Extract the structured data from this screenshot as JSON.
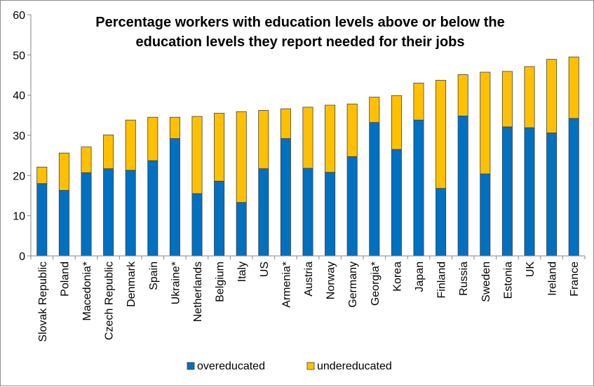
{
  "chart_data": {
    "type": "bar",
    "stacked": true,
    "title": [
      "Percentage workers with education levels above or below the",
      "education levels they report needed for their jobs"
    ],
    "xlabel": "",
    "ylabel": "",
    "ylim": [
      0,
      60
    ],
    "yticks": [
      "0",
      "10",
      "20",
      "30",
      "40",
      "50",
      "60"
    ],
    "grid": false,
    "legend_position": "bottom",
    "categories": [
      "Slovak Republic",
      "Poland",
      "Macedonia*",
      "Czech Republic",
      "Denmark",
      "Spain",
      "Ukraine*",
      "Netherlands",
      "Belgium",
      "Italy",
      "US",
      "Armenia*",
      "Austria",
      "Norway",
      "Germany",
      "Georgia*",
      "Korea",
      "Japan",
      "Finland",
      "Russia",
      "Sweden",
      "Estonia",
      "UK",
      "Ireland",
      "France"
    ],
    "series": [
      {
        "name": "overeducated",
        "color": "#0070c0",
        "values": [
          18,
          16.3,
          20.7,
          21.7,
          21.3,
          23.7,
          29.2,
          15.5,
          18.6,
          13.3,
          21.7,
          29.2,
          21.8,
          20.8,
          24.7,
          33.2,
          26.5,
          33.8,
          16.8,
          34.8,
          20.4,
          32.1,
          31.9,
          30.6,
          34.2
        ]
      },
      {
        "name": "undereducated",
        "color": "#ffc000",
        "values": [
          4.1,
          9.3,
          6.4,
          8.4,
          12.5,
          10.8,
          5.3,
          19.2,
          16.9,
          22.6,
          14.5,
          7.4,
          15.2,
          16.7,
          13.1,
          6.3,
          13.4,
          9.2,
          26.9,
          10.3,
          25.3,
          13.8,
          15.2,
          18.3,
          15.3
        ]
      }
    ]
  }
}
